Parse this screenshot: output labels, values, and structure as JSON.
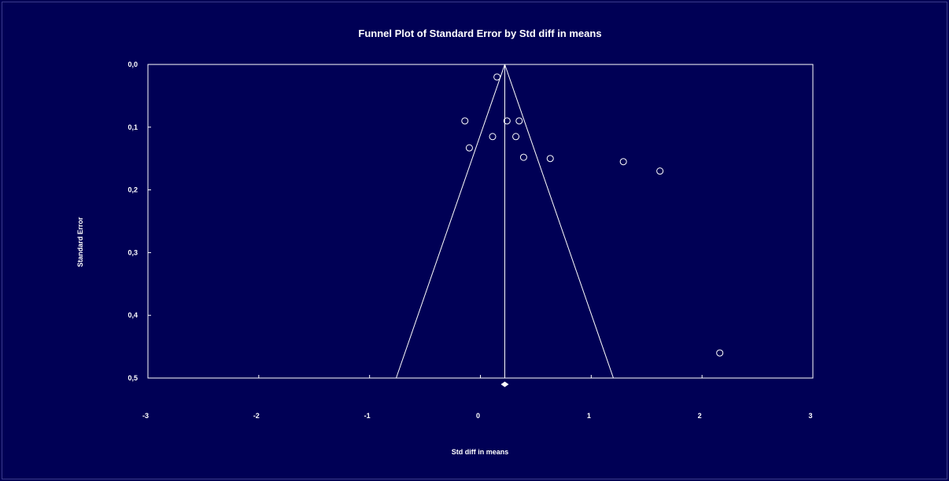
{
  "chart_data": {
    "type": "scatter",
    "title": "Funnel Plot of Standard Error by Std diff in means",
    "xlabel": "Std diff in means",
    "ylabel": "Standard Error",
    "xlim": [
      -3,
      3
    ],
    "ylim": [
      0,
      0.5
    ],
    "y_inverted": true,
    "x_ticks": [
      -3,
      -2,
      -1,
      0,
      1,
      2,
      3
    ],
    "x_tick_labels": [
      "-3",
      "-2",
      "-1",
      "0",
      "1",
      "2",
      "3"
    ],
    "y_ticks": [
      0,
      0.1,
      0.2,
      0.3,
      0.4,
      0.5
    ],
    "y_tick_labels": [
      "0,0",
      "0,1",
      "0,2",
      "0,3",
      "0,4",
      "0,5"
    ],
    "grid": false,
    "summary_effect": 0.22,
    "points": [
      {
        "x": 0.15,
        "y": 0.02
      },
      {
        "x": -0.14,
        "y": 0.09
      },
      {
        "x": 0.24,
        "y": 0.09
      },
      {
        "x": 0.35,
        "y": 0.09
      },
      {
        "x": 0.11,
        "y": 0.115
      },
      {
        "x": 0.32,
        "y": 0.115
      },
      {
        "x": -0.1,
        "y": 0.133
      },
      {
        "x": 0.39,
        "y": 0.148
      },
      {
        "x": 0.63,
        "y": 0.15
      },
      {
        "x": 1.29,
        "y": 0.155
      },
      {
        "x": 1.62,
        "y": 0.17
      },
      {
        "x": 2.16,
        "y": 0.46
      }
    ],
    "colors": {
      "background": "#000055",
      "foreground": "#ffffff"
    }
  }
}
